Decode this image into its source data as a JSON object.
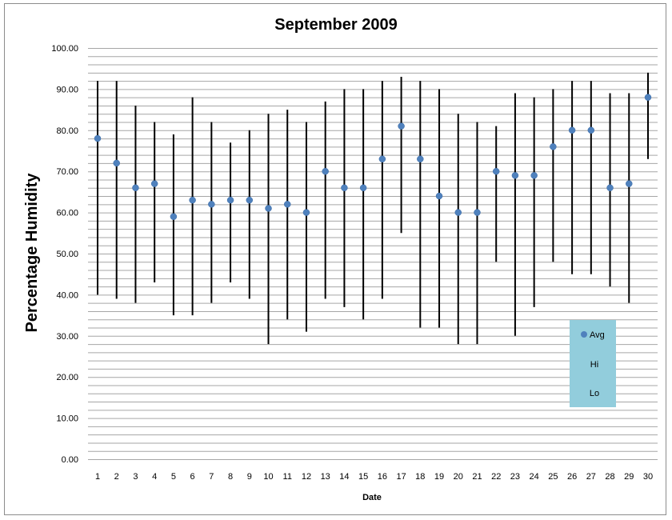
{
  "colors": {
    "avg_marker": "#4f81bd",
    "hilo_line": "#000000",
    "gridline": "#a6a6a6",
    "legend_bg": "#92cddc",
    "frame_border": "#8c8c8c"
  },
  "chart_data": {
    "type": "hilo-scatter",
    "title": "September 2009",
    "xlabel": "Date",
    "ylabel": "Percentage Humidity",
    "ylim": [
      0,
      100
    ],
    "y_ticks": [
      "0.00",
      "10.00",
      "20.00",
      "30.00",
      "40.00",
      "50.00",
      "60.00",
      "70.00",
      "80.00",
      "90.00",
      "100.00"
    ],
    "minor_grid_step": 2,
    "grid": true,
    "legend_position": "bottom-right",
    "categories": [
      1,
      2,
      3,
      4,
      5,
      6,
      7,
      8,
      9,
      10,
      11,
      12,
      13,
      14,
      15,
      16,
      17,
      18,
      19,
      20,
      21,
      22,
      23,
      24,
      25,
      26,
      27,
      28,
      29,
      30
    ],
    "series": [
      {
        "name": "Avg",
        "values": [
          78,
          72,
          66,
          67,
          59,
          63,
          62,
          63,
          63,
          61,
          62,
          60,
          70,
          66,
          66,
          73,
          81,
          73,
          64,
          60,
          60,
          70,
          69,
          69,
          76,
          80,
          80,
          66,
          67,
          88
        ]
      },
      {
        "name": "Hi",
        "values": [
          92,
          92,
          86,
          82,
          79,
          88,
          82,
          77,
          80,
          84,
          85,
          82,
          87,
          90,
          90,
          92,
          93,
          92,
          90,
          84,
          82,
          81,
          89,
          88,
          90,
          92,
          92,
          89,
          89,
          94
        ]
      },
      {
        "name": "Lo",
        "values": [
          40,
          39,
          38,
          43,
          35,
          35,
          38,
          43,
          39,
          28,
          34,
          31,
          39,
          37,
          34,
          39,
          55,
          32,
          32,
          28,
          28,
          48,
          30,
          37,
          48,
          45,
          45,
          42,
          38,
          73
        ]
      }
    ]
  },
  "legend": {
    "items": [
      "Avg",
      "Hi",
      "Lo"
    ]
  }
}
